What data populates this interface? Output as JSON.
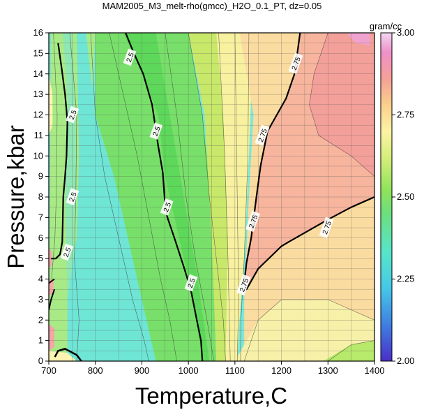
{
  "chart_data": {
    "type": "heatmap",
    "title": "MAM2005_M3_melt-rho(gmcc)_H2O_0.1_PT, dz=0.05",
    "xlabel": "Temperature,C",
    "ylabel": "Pressure,kbar",
    "xlim": [
      700,
      1400
    ],
    "ylim": [
      0,
      16
    ],
    "x_ticks": [
      "700",
      "800",
      "900",
      "1000",
      "1100",
      "1200",
      "1300",
      "1400"
    ],
    "y_ticks": [
      "0",
      "1",
      "2",
      "3",
      "4",
      "5",
      "6",
      "7",
      "8",
      "9",
      "10",
      "11",
      "12",
      "13",
      "14",
      "15",
      "16"
    ],
    "grid": true,
    "colorbar": {
      "label": "gram/cc",
      "range": [
        2.0,
        3.0
      ],
      "ticks": [
        "2.00",
        "2.25",
        "2.50",
        "2.75",
        "3.00"
      ]
    },
    "contour_levels_labeled": [
      {
        "value": "2.5",
        "lines": [
          [
            [
              720,
              15.5
            ],
            [
              728,
              14.2
            ],
            [
              735,
              13
            ],
            [
              740,
              11.7
            ],
            [
              738,
              10
            ],
            [
              735,
              9
            ],
            [
              731,
              8
            ],
            [
              730,
              6.8
            ],
            [
              729,
              5.8
            ],
            [
              724,
              5.2
            ],
            [
              715,
              5.0
            ],
            [
              705,
              5.0
            ]
          ],
          [
            [
              865,
              16
            ],
            [
              883,
              15
            ],
            [
              903,
              14
            ],
            [
              922,
              12.5
            ],
            [
              935,
              10.5
            ],
            [
              945,
              9.2
            ],
            [
              950,
              7.6
            ],
            [
              955,
              7.0
            ],
            [
              970,
              6.0
            ],
            [
              990,
              4.6
            ],
            [
              1005,
              3.5
            ],
            [
              1018,
              2.0
            ],
            [
              1027,
              1.0
            ],
            [
              1030,
              0
            ]
          ]
        ]
      },
      {
        "value": "2.75",
        "lines": [
          [
            [
              1240,
              16
            ],
            [
              1228,
              14
            ],
            [
              1210,
              12.8
            ],
            [
              1170,
              11.2
            ],
            [
              1155,
              9.5
            ],
            [
              1145,
              7.8
            ],
            [
              1135,
              6
            ],
            [
              1125,
              4.8
            ],
            [
              1120,
              3.8
            ],
            [
              1125,
              3.5
            ],
            [
              1150,
              4.5
            ],
            [
              1200,
              5.6
            ],
            [
              1215,
              5.8
            ],
            [
              1300,
              6.9
            ],
            [
              1350,
              7.5
            ],
            [
              1400,
              8.0
            ]
          ]
        ]
      }
    ],
    "contour_labels": [
      {
        "text": "2.5",
        "x": 752,
        "y": 12.0
      },
      {
        "text": "2.5",
        "x": 752,
        "y": 8.0
      },
      {
        "text": "2.5",
        "x": 740,
        "y": 5.3
      },
      {
        "text": "2.5",
        "x": 875,
        "y": 14.8
      },
      {
        "text": "2.5",
        "x": 932,
        "y": 11.2
      },
      {
        "text": "2.5",
        "x": 955,
        "y": 7.5
      },
      {
        "text": "2.5",
        "x": 1007,
        "y": 3.8
      },
      {
        "text": "2.75",
        "x": 1232,
        "y": 14.5
      },
      {
        "text": "2.75",
        "x": 1160,
        "y": 11.0
      },
      {
        "text": "2.75",
        "x": 1140,
        "y": 6.8
      },
      {
        "text": "2.75",
        "x": 1120,
        "y": 3.7
      },
      {
        "text": "2.75",
        "x": 1298,
        "y": 6.5
      }
    ],
    "regions": [
      {
        "density": 2.35,
        "desc": "blue-green"
      },
      {
        "density": 2.45,
        "desc": "light green"
      },
      {
        "density": 2.55,
        "desc": "green"
      },
      {
        "density": 2.65,
        "desc": "yellow-green"
      },
      {
        "density": 2.7,
        "desc": "pale yellow"
      },
      {
        "density": 2.78,
        "desc": "peach"
      },
      {
        "density": 2.85,
        "desc": "salmon"
      },
      {
        "density": 2.95,
        "desc": "pink"
      }
    ]
  }
}
